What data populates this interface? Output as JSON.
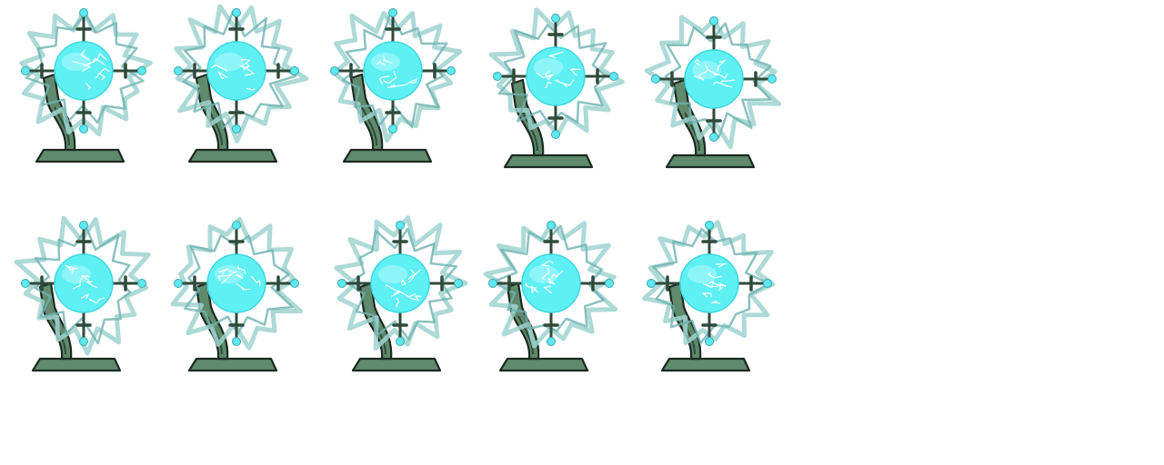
{
  "sprite_sheet": {
    "background": "#ffffff",
    "rows": 2,
    "columns": 5,
    "frame_count": 10,
    "subject": "tesla-coil-orb",
    "palette": {
      "orb_fill": "#5ff0f4",
      "orb_highlight": "#e6ffff",
      "crackle": "#ffffff",
      "electric_ring": "#9fd3d0",
      "electric_ring_edge": "#6fb3b0",
      "stand": "#5f8a6c",
      "stand_dark": "#2f4a3a",
      "outline": "#1b2a22",
      "node": "#5ee8ef"
    },
    "frames": [
      {
        "index": 1,
        "row": 1
      },
      {
        "index": 2,
        "row": 1
      },
      {
        "index": 3,
        "row": 1
      },
      {
        "index": 4,
        "row": 1
      },
      {
        "index": 5,
        "row": 1
      },
      {
        "index": 6,
        "row": 2
      },
      {
        "index": 7,
        "row": 2
      },
      {
        "index": 8,
        "row": 2
      },
      {
        "index": 9,
        "row": 2
      },
      {
        "index": 10,
        "row": 2
      }
    ]
  }
}
